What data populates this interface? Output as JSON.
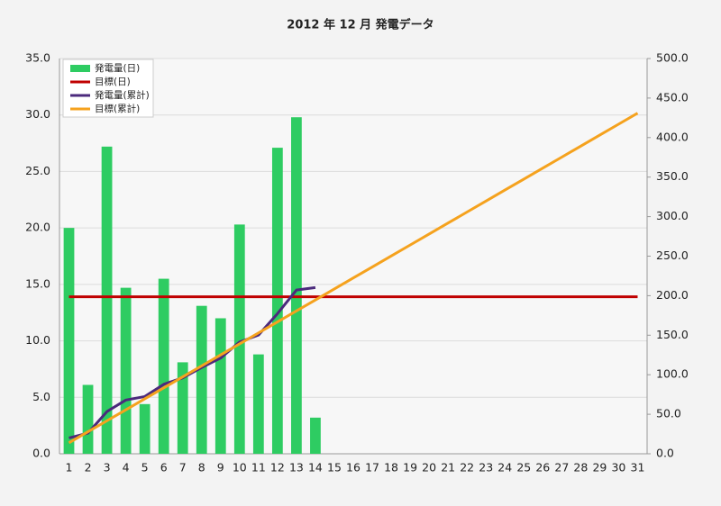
{
  "chart_data": {
    "type": "bar",
    "title": "2012 年 12 月 発電データ",
    "categories": [
      "1",
      "2",
      "3",
      "4",
      "5",
      "6",
      "7",
      "8",
      "9",
      "10",
      "11",
      "12",
      "13",
      "14",
      "15",
      "16",
      "17",
      "18",
      "19",
      "20",
      "21",
      "22",
      "23",
      "24",
      "25",
      "26",
      "27",
      "28",
      "29",
      "30",
      "31"
    ],
    "ylim": [
      0,
      35
    ],
    "yticks": [
      {
        "value": 0,
        "label": "0.0"
      },
      {
        "value": 5,
        "label": "5.0"
      },
      {
        "value": 10,
        "label": "10.0"
      },
      {
        "value": 15,
        "label": "15.0"
      },
      {
        "value": 20,
        "label": "20.0"
      },
      {
        "value": 25,
        "label": "25.0"
      },
      {
        "value": 30,
        "label": "30.0"
      },
      {
        "value": 35,
        "label": "35.0"
      }
    ],
    "y2lim": [
      0,
      500
    ],
    "y2ticks": [
      {
        "value": 0,
        "label": "0.0"
      },
      {
        "value": 50,
        "label": "50.0"
      },
      {
        "value": 100,
        "label": "100.0"
      },
      {
        "value": 150,
        "label": "150.0"
      },
      {
        "value": 200,
        "label": "200.0"
      },
      {
        "value": 250,
        "label": "250.0"
      },
      {
        "value": 300,
        "label": "300.0"
      },
      {
        "value": 350,
        "label": "350.0"
      },
      {
        "value": 400,
        "label": "400.0"
      },
      {
        "value": 450,
        "label": "450.0"
      },
      {
        "value": 500,
        "label": "500.0"
      }
    ],
    "grid": true,
    "legend": "upper left",
    "series": [
      {
        "name": "発電量(日)",
        "type": "bar",
        "color": "#2ecc62",
        "values": [
          20.0,
          6.1,
          27.2,
          14.7,
          4.4,
          15.5,
          8.1,
          13.1,
          12.0,
          20.3,
          8.8,
          27.1,
          29.8,
          3.2,
          null,
          null,
          null,
          null,
          null,
          null,
          null,
          null,
          null,
          null,
          null,
          null,
          null,
          null,
          null,
          null,
          null
        ]
      },
      {
        "name": "目標(日)",
        "type": "line",
        "color": "#c00000",
        "values": [
          13.9,
          13.9,
          13.9,
          13.9,
          13.9,
          13.9,
          13.9,
          13.9,
          13.9,
          13.9,
          13.9,
          13.9,
          13.9,
          13.9,
          13.9,
          13.9,
          13.9,
          13.9,
          13.9,
          13.9,
          13.9,
          13.9,
          13.9,
          13.9,
          13.9,
          13.9,
          13.9,
          13.9,
          13.9,
          13.9,
          13.9
        ]
      },
      {
        "name": "発電量(累計)",
        "type": "line",
        "axis": "y2",
        "color": "#4b2a7c",
        "values": [
          20.0,
          26.1,
          53.3,
          68.0,
          72.4,
          87.9,
          96.0,
          109.1,
          121.1,
          141.4,
          150.2,
          177.3,
          207.1,
          210.3,
          null,
          null,
          null,
          null,
          null,
          null,
          null,
          null,
          null,
          null,
          null,
          null,
          null,
          null,
          null,
          null,
          null
        ]
      },
      {
        "name": "目標(累計)",
        "type": "line",
        "axis": "y2",
        "color": "#f5a21e",
        "values": [
          13.9,
          27.8,
          41.7,
          55.6,
          69.5,
          83.4,
          97.3,
          111.2,
          125.1,
          139.0,
          152.9,
          166.8,
          180.7,
          194.6,
          208.5,
          222.4,
          236.3,
          250.2,
          264.1,
          278.0,
          291.9,
          305.8,
          319.7,
          333.6,
          347.5,
          361.4,
          375.3,
          389.2,
          403.1,
          417.0,
          430.9
        ]
      }
    ]
  }
}
